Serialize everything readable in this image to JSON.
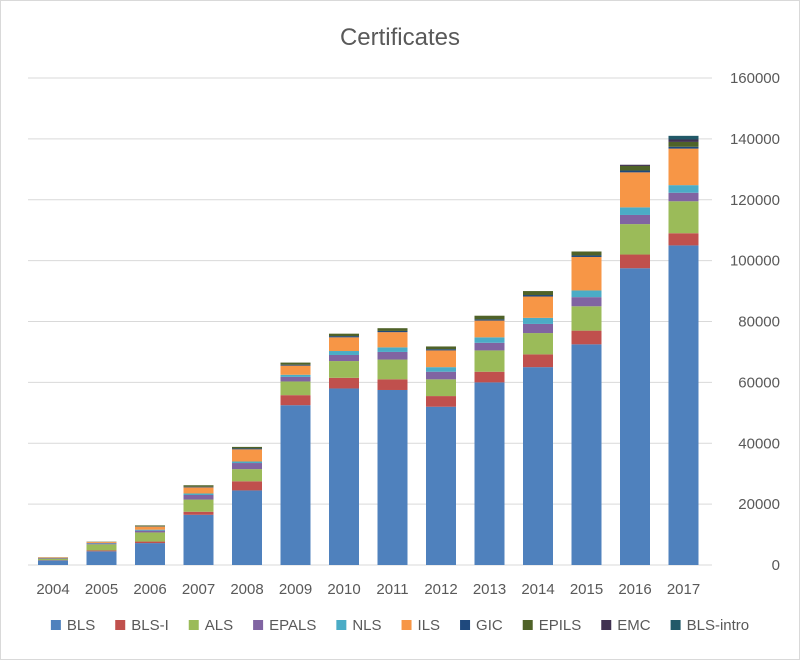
{
  "chart_data": {
    "type": "bar",
    "stacked": true,
    "title": "Certificates",
    "xlabel": "",
    "ylabel": "",
    "ylim": [
      0,
      160000
    ],
    "yticks": [
      0,
      20000,
      40000,
      60000,
      80000,
      100000,
      120000,
      140000,
      160000
    ],
    "y_axis_side": "right",
    "grid": true,
    "legend_position": "bottom",
    "categories": [
      "2004",
      "2005",
      "2006",
      "2007",
      "2008",
      "2009",
      "2010",
      "2011",
      "2012",
      "2013",
      "2014",
      "2015",
      "2016",
      "2017"
    ],
    "series": [
      {
        "name": "BLS",
        "color": "#4f81bd",
        "values": [
          1500,
          4500,
          7200,
          16500,
          24500,
          52500,
          58000,
          57500,
          52000,
          60000,
          65000,
          72500,
          97500,
          105000
        ]
      },
      {
        "name": "BLS-I",
        "color": "#c0504d",
        "values": [
          100,
          300,
          500,
          1000,
          3000,
          3300,
          3500,
          3500,
          3500,
          3500,
          4200,
          4500,
          4500,
          4000
        ]
      },
      {
        "name": "ALS",
        "color": "#9bbb59",
        "values": [
          500,
          2000,
          3000,
          4000,
          4000,
          4500,
          5500,
          6500,
          5500,
          7000,
          7000,
          8000,
          10000,
          10500
        ]
      },
      {
        "name": "EPALS",
        "color": "#8064a2",
        "values": [
          200,
          300,
          600,
          1500,
          2000,
          1500,
          2000,
          2500,
          2500,
          2500,
          3000,
          3000,
          3000,
          2800
        ]
      },
      {
        "name": "NLS",
        "color": "#4bacc6",
        "values": [
          100,
          150,
          300,
          500,
          500,
          700,
          1300,
          1500,
          1500,
          1800,
          2000,
          2200,
          2500,
          2500
        ]
      },
      {
        "name": "ILS",
        "color": "#f79646",
        "values": [
          200,
          300,
          1000,
          2000,
          4000,
          3000,
          4500,
          5000,
          5500,
          5500,
          7000,
          11000,
          11500,
          12000
        ]
      },
      {
        "name": "GIC",
        "color": "#1f497d",
        "values": [
          0,
          0,
          100,
          200,
          300,
          300,
          400,
          400,
          400,
          400,
          500,
          500,
          600,
          600
        ]
      },
      {
        "name": "EPILS",
        "color": "#4f6228",
        "values": [
          0,
          100,
          300,
          500,
          500,
          700,
          800,
          900,
          900,
          1200,
          1300,
          1300,
          1500,
          1600
        ]
      },
      {
        "name": "EMC",
        "color": "#403151",
        "values": [
          0,
          0,
          0,
          0,
          0,
          0,
          0,
          0,
          0,
          0,
          0,
          0,
          400,
          800
        ]
      },
      {
        "name": "BLS-intro",
        "color": "#215968",
        "values": [
          0,
          0,
          0,
          0,
          0,
          0,
          0,
          0,
          0,
          0,
          0,
          0,
          0,
          1200
        ]
      }
    ]
  }
}
